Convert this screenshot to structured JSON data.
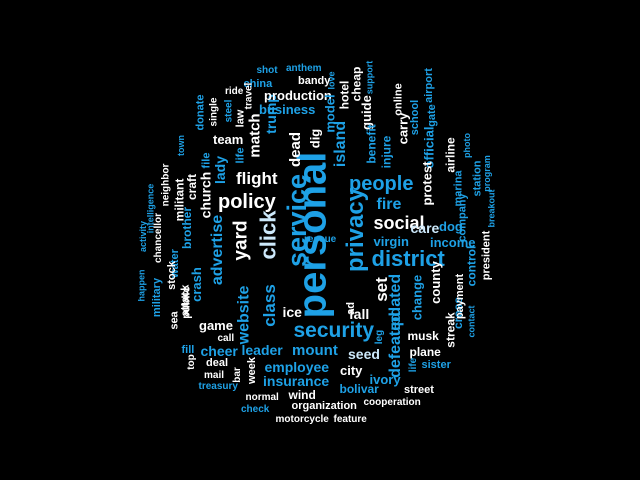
{
  "colors": {
    "background": "#000000",
    "white": "#ffffff",
    "sky": "#1ea1e6",
    "light": "#7fd4ff",
    "pale": "#cde9fb",
    "deep": "#1a87c8"
  },
  "words": [
    {
      "text": "personal",
      "color": "sky"
    },
    {
      "text": "service",
      "color": "sky"
    },
    {
      "text": "privacy",
      "color": "sky"
    },
    {
      "text": "policy",
      "color": "white"
    },
    {
      "text": "click",
      "color": "pale"
    },
    {
      "text": "district",
      "color": "sky"
    },
    {
      "text": "people",
      "color": "sky"
    },
    {
      "text": "security",
      "color": "sky"
    },
    {
      "text": "social",
      "color": "white"
    },
    {
      "text": "yard",
      "color": "white"
    },
    {
      "text": "advertise",
      "color": "sky"
    },
    {
      "text": "flight",
      "color": "white"
    },
    {
      "text": "class",
      "color": "sky"
    },
    {
      "text": "website",
      "color": "sky"
    },
    {
      "text": "island",
      "color": "sky"
    },
    {
      "text": "fire",
      "color": "sky"
    },
    {
      "text": "care",
      "color": "pale"
    },
    {
      "text": "set",
      "color": "white"
    },
    {
      "text": "updated",
      "color": "sky"
    },
    {
      "text": "defeated",
      "color": "sky"
    },
    {
      "text": "match",
      "color": "white"
    },
    {
      "text": "dead",
      "color": "white"
    },
    {
      "text": "trump",
      "color": "sky"
    },
    {
      "text": "lady",
      "color": "sky"
    },
    {
      "text": "church",
      "color": "white"
    },
    {
      "text": "crash",
      "color": "sky"
    },
    {
      "text": "mount",
      "color": "sky"
    },
    {
      "text": "leader",
      "color": "sky"
    },
    {
      "text": "cheer",
      "color": "sky"
    },
    {
      "text": "seed",
      "color": "pale"
    },
    {
      "text": "fall",
      "color": "white"
    },
    {
      "text": "ice",
      "color": "white"
    },
    {
      "text": "employee",
      "color": "sky"
    },
    {
      "text": "insurance",
      "color": "sky"
    },
    {
      "text": "city",
      "color": "white"
    },
    {
      "text": "ivory",
      "color": "sky"
    },
    {
      "text": "bolivar",
      "color": "sky"
    },
    {
      "text": "game",
      "color": "white"
    },
    {
      "text": "team",
      "color": "white"
    },
    {
      "text": "business",
      "color": "sky"
    },
    {
      "text": "production",
      "color": "white"
    },
    {
      "text": "dig",
      "color": "white"
    },
    {
      "text": "model",
      "color": "sky"
    },
    {
      "text": "hotel",
      "color": "white"
    },
    {
      "text": "guide",
      "color": "white"
    },
    {
      "text": "cheap",
      "color": "white"
    },
    {
      "text": "injure",
      "color": "sky"
    },
    {
      "text": "benefit",
      "color": "sky"
    },
    {
      "text": "carry",
      "color": "white"
    },
    {
      "text": "online",
      "color": "white"
    },
    {
      "text": "school",
      "color": "sky"
    },
    {
      "text": "official",
      "color": "sky"
    },
    {
      "text": "protest",
      "color": "white"
    },
    {
      "text": "gate",
      "color": "sky"
    },
    {
      "text": "airport",
      "color": "sky"
    },
    {
      "text": "dog",
      "color": "sky"
    },
    {
      "text": "income",
      "color": "sky"
    },
    {
      "text": "virgin",
      "color": "sky"
    },
    {
      "text": "county",
      "color": "white"
    },
    {
      "text": "change",
      "color": "sky"
    },
    {
      "text": "musk",
      "color": "white"
    },
    {
      "text": "plane",
      "color": "white"
    },
    {
      "text": "streak",
      "color": "white"
    },
    {
      "text": "cross",
      "color": "sky"
    },
    {
      "text": "control",
      "color": "sky"
    },
    {
      "text": "payment",
      "color": "white"
    },
    {
      "text": "airline",
      "color": "white"
    },
    {
      "text": "marina",
      "color": "sky"
    },
    {
      "text": "company",
      "color": "sky"
    },
    {
      "text": "photo",
      "color": "sky"
    },
    {
      "text": "station",
      "color": "sky"
    },
    {
      "text": "president",
      "color": "white"
    },
    {
      "text": "program",
      "color": "sky"
    },
    {
      "text": "breakout",
      "color": "sky"
    },
    {
      "text": "contact",
      "color": "sky"
    },
    {
      "text": "sister",
      "color": "sky"
    },
    {
      "text": "life",
      "color": "sky"
    },
    {
      "text": "street",
      "color": "white"
    },
    {
      "text": "cooperation",
      "color": "white"
    },
    {
      "text": "feature",
      "color": "white"
    },
    {
      "text": "motorcycle",
      "color": "white"
    },
    {
      "text": "organization",
      "color": "white"
    },
    {
      "text": "wind",
      "color": "white"
    },
    {
      "text": "normal",
      "color": "white"
    },
    {
      "text": "check",
      "color": "sky"
    },
    {
      "text": "treasury",
      "color": "sky"
    },
    {
      "text": "mail",
      "color": "white"
    },
    {
      "text": "deal",
      "color": "white"
    },
    {
      "text": "week",
      "color": "white"
    },
    {
      "text": "bar",
      "color": "white"
    },
    {
      "text": "call",
      "color": "white"
    },
    {
      "text": "top",
      "color": "white"
    },
    {
      "text": "fill",
      "color": "sky"
    },
    {
      "text": "leg",
      "color": "sky"
    },
    {
      "text": "ad",
      "color": "white"
    },
    {
      "text": "shot",
      "color": "sky"
    },
    {
      "text": "anthem",
      "color": "sky"
    },
    {
      "text": "love",
      "color": "sky"
    },
    {
      "text": "bandy",
      "color": "white"
    },
    {
      "text": "support",
      "color": "sky"
    },
    {
      "text": "china",
      "color": "sky"
    },
    {
      "text": "ride",
      "color": "white"
    },
    {
      "text": "travel",
      "color": "white"
    },
    {
      "text": "law",
      "color": "white"
    },
    {
      "text": "steel",
      "color": "sky"
    },
    {
      "text": "single",
      "color": "white"
    },
    {
      "text": "donate",
      "color": "sky"
    },
    {
      "text": "life",
      "color": "sky"
    },
    {
      "text": "file",
      "color": "sky"
    },
    {
      "text": "craft",
      "color": "white"
    },
    {
      "text": "brother",
      "color": "sky"
    },
    {
      "text": "militant",
      "color": "white"
    },
    {
      "text": "water",
      "color": "sky"
    },
    {
      "text": "town",
      "color": "sky"
    },
    {
      "text": "neighbor",
      "color": "white"
    },
    {
      "text": "chancellor",
      "color": "white"
    },
    {
      "text": "stock",
      "color": "white"
    },
    {
      "text": "public",
      "color": "white"
    },
    {
      "text": "attack",
      "color": "white"
    },
    {
      "text": "sea",
      "color": "white"
    },
    {
      "text": "military",
      "color": "sky"
    },
    {
      "text": "intelligence",
      "color": "sky"
    },
    {
      "text": "activity",
      "color": "sky"
    },
    {
      "text": "happen",
      "color": "sky"
    },
    {
      "text": "rescue",
      "color": "sky"
    }
  ]
}
